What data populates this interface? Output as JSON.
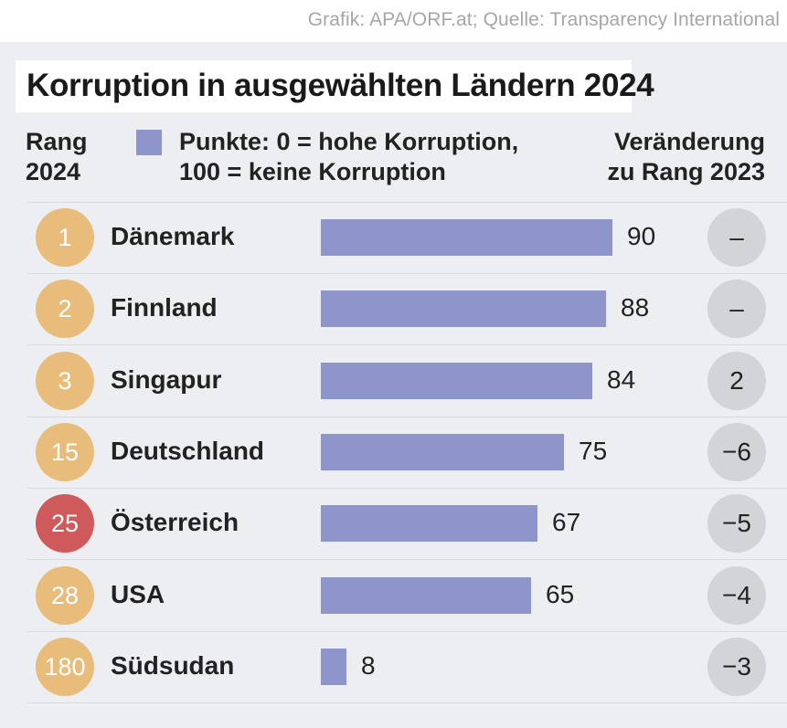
{
  "credit": "Grafik: APA/ORF.at; Quelle: Transparency International",
  "title": "Korruption in ausgewählten Ländern 2024",
  "headers": {
    "rank_line1": "Rang",
    "rank_line2": "2024",
    "legend_line1": "Punkte: 0 = hohe Korruption,",
    "legend_line2": "100 = keine Korruption",
    "change_line1": "Veränderung",
    "change_line2": "zu Rang 2023"
  },
  "colors": {
    "bar": "#8e95cb",
    "rank_badge": "#e8bd7b",
    "rank_badge_highlight": "#cf5a5b",
    "change_badge": "#d3d4d8"
  },
  "chart_data": {
    "type": "bar",
    "orientation": "horizontal",
    "xlim": [
      0,
      100
    ],
    "categories": [
      "Dänemark",
      "Finnland",
      "Singapur",
      "Deutschland",
      "Österreich",
      "USA",
      "Südsudan"
    ],
    "values": [
      90,
      88,
      84,
      75,
      67,
      65,
      8
    ],
    "ranks": [
      "1",
      "2",
      "3",
      "15",
      "25",
      "28",
      "180"
    ],
    "highlighted": [
      false,
      false,
      false,
      false,
      true,
      false,
      false
    ],
    "changes": [
      "–",
      "–",
      "2",
      "−6",
      "−5",
      "−4",
      "−3"
    ],
    "value_labels": [
      "90",
      "88",
      "84",
      "75",
      "67",
      "65",
      "8"
    ]
  }
}
